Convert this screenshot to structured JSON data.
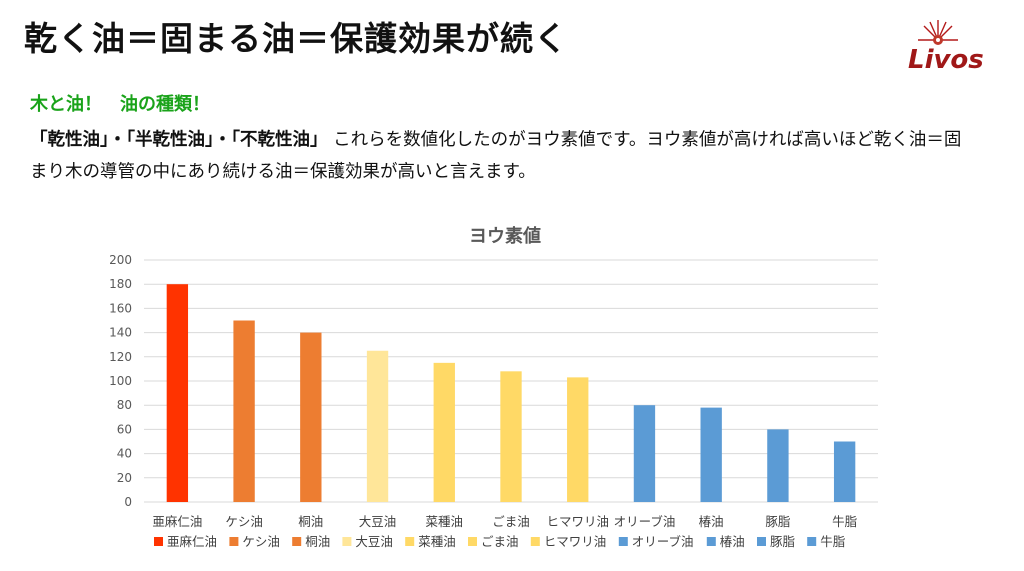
{
  "slide": {
    "title": "乾く油＝固まる油＝保護効果が続く",
    "subtitle": "木と油！　油の種類！",
    "body": {
      "bold1": "「乾性油」",
      "sep1": "・",
      "bold2": "「半乾性油」",
      "sep2": "・",
      "bold3": "「不乾性油」",
      "rest": "これらを数値化したのがヨウ素値です。ヨウ素値が高ければ高いほど乾く油＝固まり木の導管の中にあり続ける油＝保護効果が高いと言えます。"
    },
    "logo": {
      "text": "Livos",
      "color": "#a01818"
    }
  },
  "chart_data": {
    "type": "bar",
    "title": "ヨウ素値",
    "categories": [
      "亜麻仁油",
      "ケシ油",
      "桐油",
      "大豆油",
      "菜種油",
      "ごま油",
      "ヒマワリ油",
      "オリーブ油",
      "椿油",
      "豚脂",
      "牛脂"
    ],
    "values": [
      180,
      150,
      140,
      125,
      115,
      108,
      103,
      80,
      78,
      60,
      50
    ],
    "colors": [
      "#ff3300",
      "#ed7d31",
      "#ed7d31",
      "#ffe699",
      "#ffd966",
      "#ffd966",
      "#ffd966",
      "#5b9bd5",
      "#5b9bd5",
      "#5b9bd5",
      "#5b9bd5"
    ],
    "ylim": [
      0,
      200
    ],
    "yticks": [
      0,
      20,
      40,
      60,
      80,
      100,
      120,
      140,
      160,
      180,
      200
    ],
    "grid": true,
    "legend_position": "bottom"
  }
}
